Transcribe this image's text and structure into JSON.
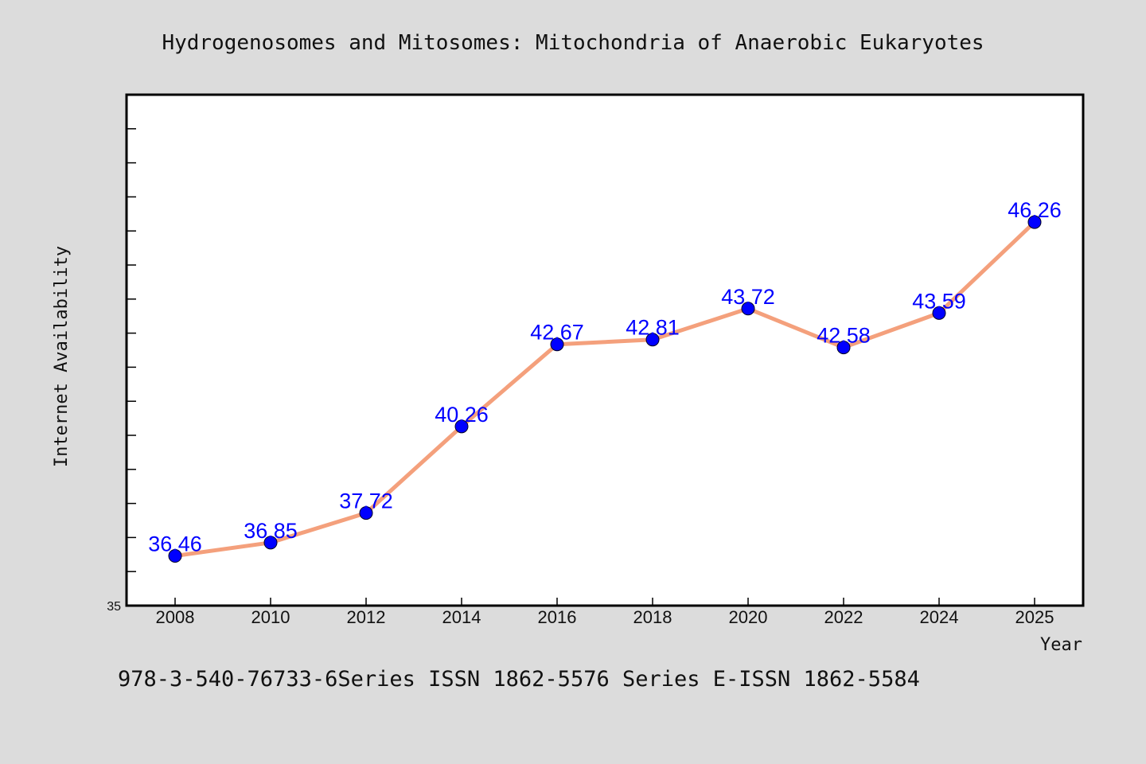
{
  "footer_text": "978-3-540-76733-6Series ISSN 1862-5576 Series E-ISSN 1862-5584",
  "colors": {
    "background": "#dcdcdc",
    "plot_background": "#ffffff",
    "line": "#f4a07c",
    "marker": "#0000ff",
    "label": "#0000ff"
  },
  "chart_data": {
    "type": "line",
    "title": "Hydrogenosomes and Mitosomes: Mitochondria of Anaerobic Eukaryotes",
    "xlabel": "Year",
    "ylabel": "Internet Availability",
    "categories": [
      "2008",
      "2010",
      "2012",
      "2014",
      "2016",
      "2018",
      "2020",
      "2022",
      "2024",
      "2025"
    ],
    "series": [
      {
        "values": [
          36.46,
          36.85,
          37.72,
          40.26,
          42.67,
          42.81,
          43.72,
          42.58,
          43.59,
          46.26
        ],
        "labels": [
          "36.46",
          "36.85",
          "37.72",
          "40.26",
          "42.67",
          "42.81",
          "43.72",
          "42.58",
          "43.59",
          "46.26"
        ]
      }
    ],
    "y_tick_labels": [
      "35"
    ],
    "ylim": [
      35,
      50
    ],
    "grid": false,
    "legend": "none"
  }
}
